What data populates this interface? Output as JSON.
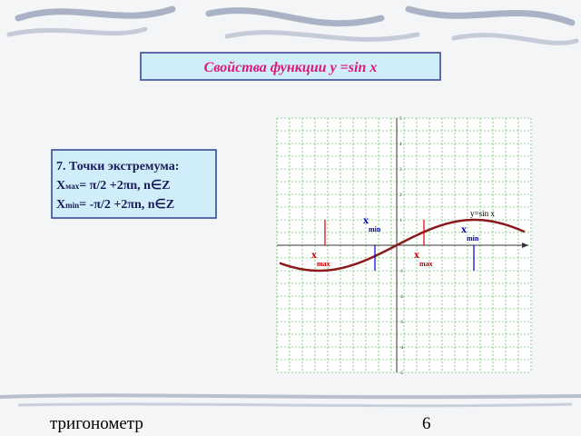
{
  "slide": {
    "title": "Свойства функции y =sin x",
    "info": {
      "heading": "7. Точки экстремума:",
      "lines": [
        {
          "main": "X",
          "sub": "мах",
          "rest": "= π/2 +2πn, n∈Z"
        },
        {
          "main": "X",
          "sub": "min",
          "rest": "= -π/2 +2πn, n∈Z"
        }
      ]
    },
    "graph": {
      "function_label": "y=sin x",
      "y_labels": [
        "5",
        "4",
        "3",
        "2",
        "1",
        "-1",
        "-2",
        "-3",
        "-4",
        "-5"
      ],
      "labels": [
        {
          "main": "x",
          "sub": "min"
        },
        {
          "main": "x",
          "sub": "min"
        },
        {
          "main": "x",
          "sub": "max"
        },
        {
          "main": "x",
          "sub": "max"
        }
      ]
    },
    "footer": {
      "left": "тригонометр",
      "right": "6"
    }
  }
}
